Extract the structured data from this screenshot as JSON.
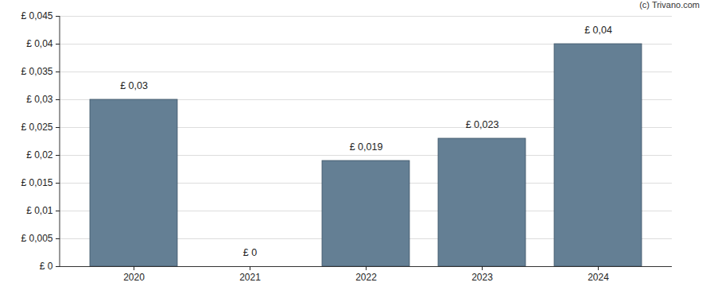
{
  "chart_data": {
    "type": "bar",
    "annotations": [
      "(c) Trivano.com"
    ],
    "categories": [
      "2020",
      "2021",
      "2022",
      "2023",
      "2024"
    ],
    "values": [
      0.03,
      0,
      0.019,
      0.023,
      0.04
    ],
    "value_labels": [
      "£ 0,03",
      "£ 0",
      "£ 0,019",
      "£ 0,023",
      "£ 0,04"
    ],
    "data_labels": true,
    "color": "#647f94",
    "ylim": [
      0,
      0.045
    ],
    "yticks": [
      {
        "value": 0,
        "label": "£ 0"
      },
      {
        "value": 0.005,
        "label": "£ 0,005"
      },
      {
        "value": 0.01,
        "label": "£ 0,01"
      },
      {
        "value": 0.015,
        "label": "£ 0,015"
      },
      {
        "value": 0.02,
        "label": "£ 0,02"
      },
      {
        "value": 0.025,
        "label": "£ 0,025"
      },
      {
        "value": 0.03,
        "label": "£ 0,03"
      },
      {
        "value": 0.035,
        "label": "£ 0,035"
      },
      {
        "value": 0.04,
        "label": "£ 0,04"
      },
      {
        "value": 0.045,
        "label": "£ 0,045"
      }
    ],
    "grid": true
  }
}
